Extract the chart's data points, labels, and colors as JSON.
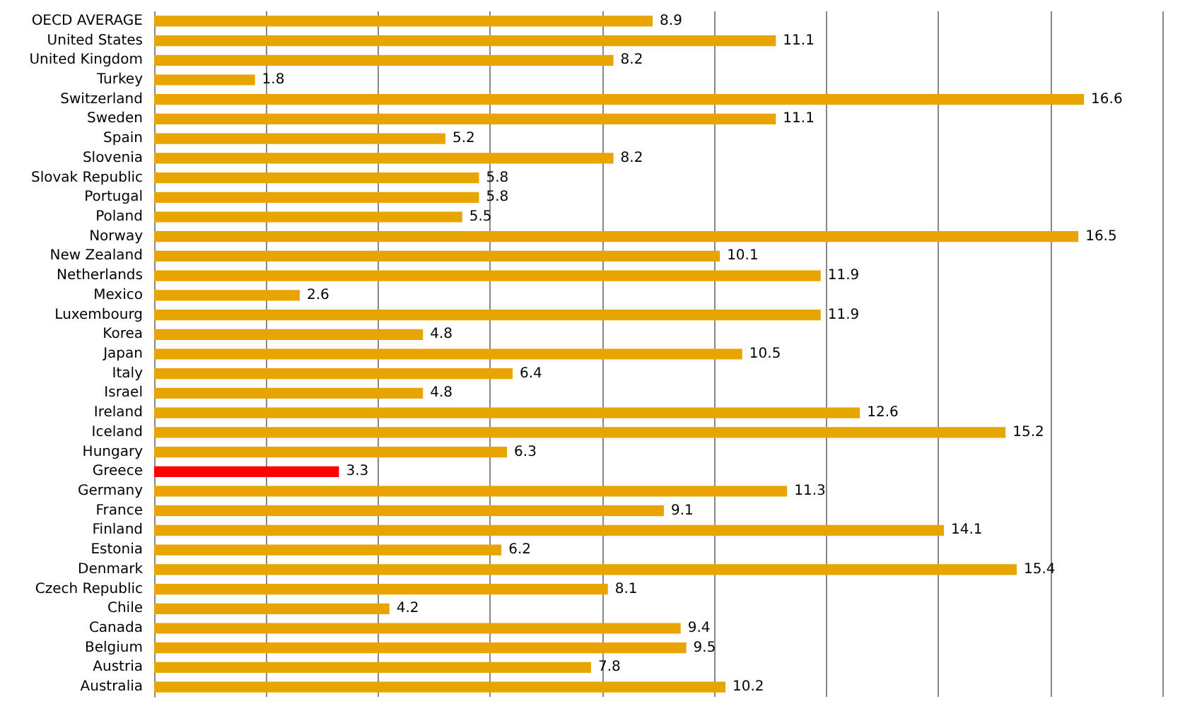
{
  "chart_data": {
    "type": "bar",
    "orientation": "horizontal",
    "categories": [
      "OECD AVERAGE",
      "United States",
      "United Kingdom",
      "Turkey",
      "Switzerland",
      "Sweden",
      "Spain",
      "Slovenia",
      "Slovak Republic",
      "Portugal",
      "Poland",
      "Norway",
      "New Zealand",
      "Netherlands",
      "Mexico",
      "Luxembourg",
      "Korea",
      "Japan",
      "Italy",
      "Israel",
      "Ireland",
      "Iceland",
      "Hungary",
      "Greece",
      "Germany",
      "France",
      "Finland",
      "Estonia",
      "Denmark",
      "Czech Republic",
      "Chile",
      "Canada",
      "Belgium",
      "Austria",
      "Australia"
    ],
    "values": [
      8.9,
      11.1,
      8.2,
      1.8,
      16.6,
      11.1,
      5.2,
      8.2,
      5.8,
      5.8,
      5.5,
      16.5,
      10.1,
      11.9,
      2.6,
      11.9,
      4.8,
      10.5,
      6.4,
      4.8,
      12.6,
      15.2,
      6.3,
      3.3,
      11.3,
      9.1,
      14.1,
      6.2,
      15.4,
      8.1,
      4.2,
      9.4,
      9.5,
      7.8,
      10.2
    ],
    "colors": [
      "#e8a400",
      "#e8a400",
      "#e8a400",
      "#e8a400",
      "#e8a400",
      "#e8a400",
      "#e8a400",
      "#e8a400",
      "#e8a400",
      "#e8a400",
      "#e8a400",
      "#e8a400",
      "#e8a400",
      "#e8a400",
      "#e8a400",
      "#e8a400",
      "#e8a400",
      "#e8a400",
      "#e8a400",
      "#e8a400",
      "#e8a400",
      "#e8a400",
      "#e8a400",
      "#ff0000",
      "#e8a400",
      "#e8a400",
      "#e8a400",
      "#e8a400",
      "#e8a400",
      "#e8a400",
      "#e8a400",
      "#e8a400",
      "#e8a400",
      "#e8a400",
      "#e8a400"
    ],
    "xlim": [
      0,
      18
    ],
    "xticks": [
      {
        "value": 0,
        "label": null
      },
      {
        "value": 2,
        "label": null
      },
      {
        "value": 4,
        "label": null
      },
      {
        "value": 6,
        "label": null
      },
      {
        "value": 8,
        "label": null
      },
      {
        "value": 10,
        "label": null
      },
      {
        "value": 12,
        "label": null
      },
      {
        "value": 14,
        "label": null
      },
      {
        "value": 16,
        "label": null
      },
      {
        "value": 18,
        "label": null
      }
    ],
    "tick_labels": "y",
    "grid": "x",
    "data_labels": true
  }
}
